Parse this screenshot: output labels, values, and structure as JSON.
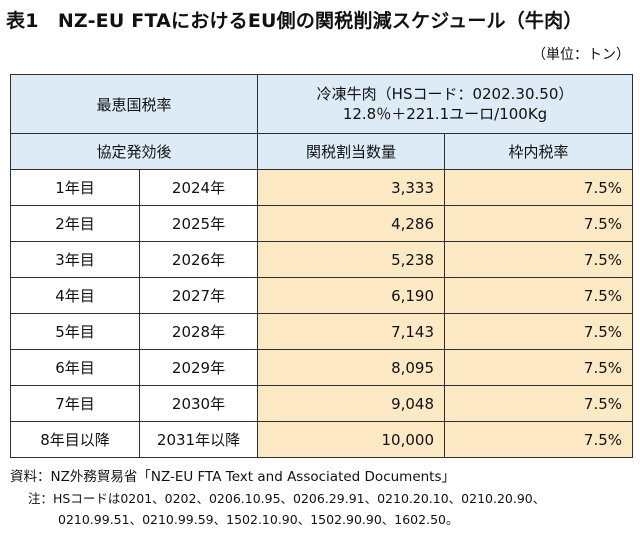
{
  "title": "表1　NZ-EU FTAにおけるEU側の関税削減スケジュール（牛肉）",
  "unit": "（単位：トン）",
  "table": {
    "header_mfn": "最恵国税率",
    "header_after": "協定発効後",
    "product_line1": "冷凍牛肉（HSコード：0202.30.50）",
    "product_line2": "12.8％＋221.1ユーロ/100Kg",
    "col_quota": "関税割当数量",
    "col_rate": "枠内税率",
    "rows": [
      {
        "year": "1年目",
        "cal": "2024年",
        "quota": "3,333",
        "rate": "7.5%"
      },
      {
        "year": "2年目",
        "cal": "2025年",
        "quota": "4,286",
        "rate": "7.5%"
      },
      {
        "year": "3年目",
        "cal": "2026年",
        "quota": "5,238",
        "rate": "7.5%"
      },
      {
        "year": "4年目",
        "cal": "2027年",
        "quota": "6,190",
        "rate": "7.5%"
      },
      {
        "year": "5年目",
        "cal": "2028年",
        "quota": "7,143",
        "rate": "7.5%"
      },
      {
        "year": "6年目",
        "cal": "2029年",
        "quota": "8,095",
        "rate": "7.5%"
      },
      {
        "year": "7年目",
        "cal": "2030年",
        "quota": "9,048",
        "rate": "7.5%"
      },
      {
        "year": "8年目以降",
        "cal": "2031年以降",
        "quota": "10,000",
        "rate": "7.5%"
      }
    ]
  },
  "source": "資料：NZ外務貿易省「NZ-EU FTA Text and Associated Documents」",
  "note_line1": "注：HSコードは0201、0202、0206.10.95、0206.29.91、0210.20.10、0210.20.90、",
  "note_line2": "0210.99.51、0210.99.59、1502.10.90、1502.90.90、1602.50。",
  "colors": {
    "header_bg": "#dcebf6",
    "value_bg": "#fdeac4",
    "border": "#2e2e2e"
  }
}
